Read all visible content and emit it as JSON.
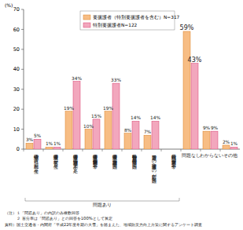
{
  "chart_data": {
    "type": "bar",
    "y_label": "(%)",
    "categories": [
      "安否確認の遅れ・混乱が発生",
      "要援護者の被害が発生",
      "要援護者の避難誘導の人手が不足",
      "要援護者の避難支援体制が不十分",
      "要援護者の避難誘導が困難",
      "避難勧告等の情報伝達が困難",
      "避難所での要援護者への対応が困難",
      "行政職員の避難支援が不十分",
      "問題なし",
      "わからない",
      "その他"
    ],
    "series": [
      {
        "name": "要援護者（特別要援護者を含む）N=317",
        "color": "#f7bd84",
        "values": [
          3,
          1,
          19,
          10,
          19,
          8,
          7,
          null,
          59,
          9,
          2
        ],
        "value_labels": [
          "3%",
          "1%",
          "19%",
          "10%",
          "19%",
          "8%",
          "7%",
          null,
          "59%",
          "9%",
          "2%"
        ]
      },
      {
        "name": "特別要援護者N=122",
        "color": "#f2a7bd",
        "values": [
          5,
          1,
          34,
          15,
          33,
          14,
          14,
          null,
          43,
          9,
          1
        ],
        "value_labels": [
          "5%",
          "1%",
          "34%",
          "15%",
          "33%",
          "14%",
          "14%",
          null,
          "43%",
          "9%",
          "1%"
        ]
      }
    ],
    "ylim": [
      0,
      70
    ],
    "yticks": [
      0,
      10,
      20,
      30,
      40,
      50,
      60,
      70
    ],
    "grid": false,
    "data_labels": true,
    "legend": "top",
    "annotations": [
      "問題あり"
    ],
    "notes": [
      "（注）１「問題あり」の内訳のみ複数回答",
      "　　　２ 百分率は「問題あり」との回答を100%として算定"
    ],
    "source": "資料）国土交通省・内閣府「平成22年度冬期の大雪」を踏まえた、地域防災力向上方策に関するアンケート調査"
  }
}
